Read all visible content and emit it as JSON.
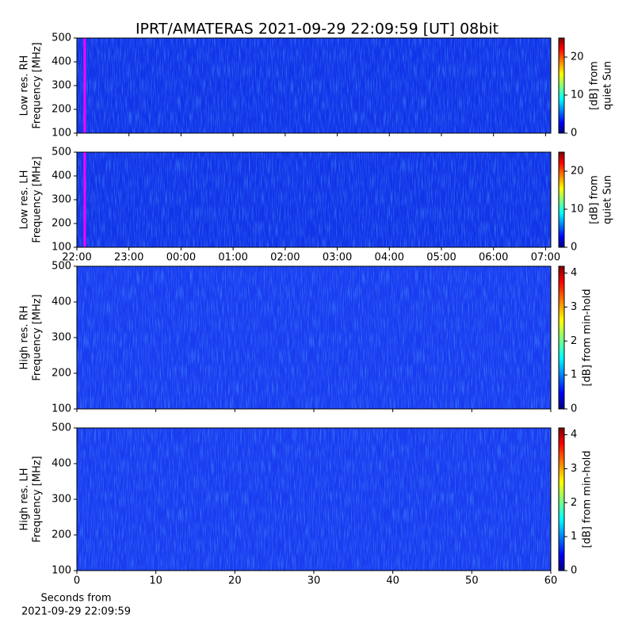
{
  "title": "IPRT/AMATERAS 2021-09-29 22:09:59 [UT]   08bit",
  "chart_data": [
    {
      "type": "heatmap",
      "ylabel": [
        "Low res. RH",
        "Frequency [MHz]"
      ],
      "ylim": [
        100,
        500
      ],
      "yticks": [
        100,
        200,
        300,
        400,
        500
      ],
      "xlim": [
        22,
        31.1
      ],
      "markers": [
        22.15
      ],
      "marker_color": "#ff00ff",
      "color": "#1234e8",
      "colorbar": {
        "label": [
          "[dB] from",
          "quiet Sun"
        ],
        "lim": [
          0,
          25
        ],
        "ticks": [
          0,
          10,
          20
        ]
      }
    },
    {
      "type": "heatmap",
      "ylabel": [
        "Low res. LH",
        "Frequency [MHz]"
      ],
      "ylim": [
        100,
        500
      ],
      "yticks": [
        100,
        200,
        300,
        400,
        500
      ],
      "xlim": [
        22,
        31.1
      ],
      "xticks": [
        {
          "value": 22,
          "label": "22:00"
        },
        {
          "value": 23,
          "label": "23:00"
        },
        {
          "value": 24,
          "label": "00:00"
        },
        {
          "value": 25,
          "label": "01:00"
        },
        {
          "value": 26,
          "label": "02:00"
        },
        {
          "value": 27,
          "label": "03:00"
        },
        {
          "value": 28,
          "label": "04:00"
        },
        {
          "value": 29,
          "label": "05:00"
        },
        {
          "value": 30,
          "label": "06:00"
        },
        {
          "value": 31,
          "label": "07:00"
        }
      ],
      "markers": [
        22.15
      ],
      "marker_color": "#ff00ff",
      "color": "#1234e8",
      "colorbar": {
        "label": [
          "[dB] from",
          "quiet Sun"
        ],
        "lim": [
          0,
          25
        ],
        "ticks": [
          0,
          10,
          20
        ]
      }
    },
    {
      "type": "heatmap",
      "ylabel": [
        "High res. RH",
        "Frequency [MHz]"
      ],
      "ylim": [
        100,
        500
      ],
      "yticks": [
        100,
        200,
        300,
        400,
        500
      ],
      "xlim": [
        0,
        60
      ],
      "color": "#1a3cf0",
      "colorbar": {
        "label": [
          "[dB] from min-hold"
        ],
        "lim": [
          0,
          4.2
        ],
        "ticks": [
          0,
          1,
          2,
          3,
          4
        ]
      }
    },
    {
      "type": "heatmap",
      "ylabel": [
        "High res. LH",
        "Frequency [MHz]"
      ],
      "ylim": [
        100,
        500
      ],
      "yticks": [
        100,
        200,
        300,
        400,
        500
      ],
      "xlim": [
        0,
        60
      ],
      "xticks": [
        0,
        10,
        20,
        30,
        40,
        50,
        60
      ],
      "xlabel": [
        "Seconds from",
        "2021-09-29 22:09:59"
      ],
      "color": "#1a3cf0",
      "colorbar": {
        "label": [
          "[dB] from min-hold"
        ],
        "lim": [
          0,
          4.2
        ],
        "ticks": [
          0,
          1,
          2,
          3,
          4
        ]
      }
    }
  ]
}
